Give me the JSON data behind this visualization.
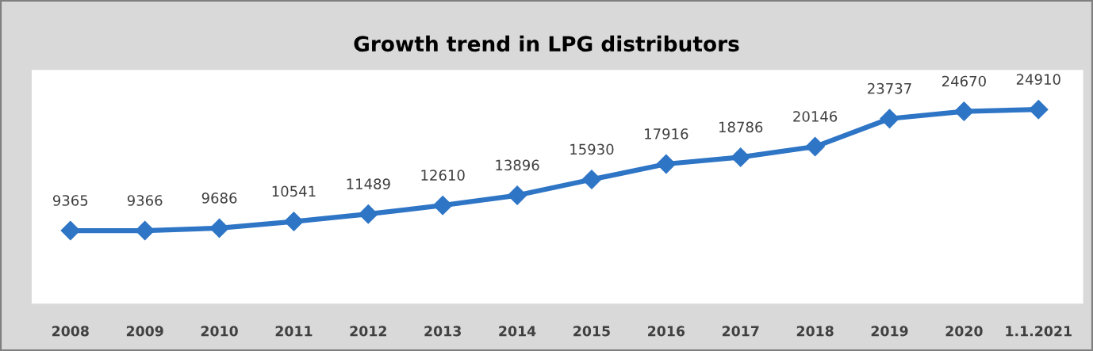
{
  "chart_data": {
    "type": "line",
    "title": "Growth trend in LPG distributors",
    "categories": [
      "2008",
      "2009",
      "2010",
      "2011",
      "2012",
      "2013",
      "2014",
      "2015",
      "2016",
      "2017",
      "2018",
      "2019",
      "2020",
      "1.1.2021"
    ],
    "values": [
      9365,
      9366,
      9686,
      10541,
      11489,
      12610,
      13896,
      15930,
      17916,
      18786,
      20146,
      23737,
      24670,
      24910
    ],
    "color": "#2e75c6",
    "marker": "diamond",
    "line_style": "solid",
    "data_labels": true,
    "ylim": [
      0,
      30000
    ],
    "tick_labels": "x"
  }
}
